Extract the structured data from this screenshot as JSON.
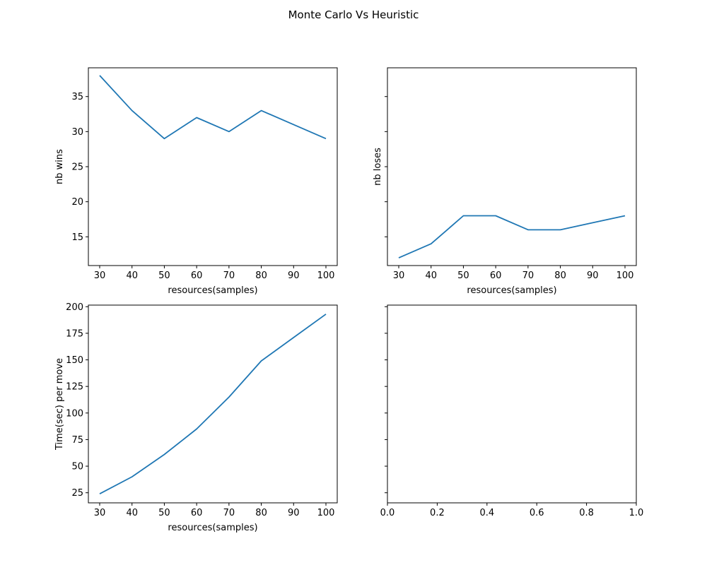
{
  "figure": {
    "title": "Monte Carlo Vs Heuristic",
    "line_color": "#1f77b4"
  },
  "chart_data": [
    {
      "type": "line",
      "position": "top-left",
      "xlabel": "resources(samples)",
      "ylabel": "nb wins",
      "xlim": [
        26.5,
        103.5
      ],
      "ylim": [
        10.9,
        39.1
      ],
      "xticks": [
        30,
        40,
        50,
        60,
        70,
        80,
        90,
        100
      ],
      "yticks": [
        15,
        20,
        25,
        30,
        35
      ],
      "x": [
        30,
        40,
        50,
        60,
        70,
        80,
        90,
        100
      ],
      "y": [
        38,
        33,
        29,
        32,
        30,
        33,
        31,
        29
      ]
    },
    {
      "type": "line",
      "position": "top-right",
      "xlabel": "resources(samples)",
      "ylabel": "nb loses",
      "xlim": [
        26.5,
        103.5
      ],
      "ylim": [
        10.9,
        39.1
      ],
      "xticks": [
        30,
        40,
        50,
        60,
        70,
        80,
        90,
        100
      ],
      "yticks": [
        15,
        20,
        25,
        30,
        35
      ],
      "ytick_labels_visible": false,
      "x": [
        30,
        40,
        50,
        60,
        70,
        80,
        90,
        100
      ],
      "y": [
        12,
        14,
        18,
        18,
        16,
        16,
        17,
        18
      ]
    },
    {
      "type": "line",
      "position": "bottom-left",
      "xlabel": "resources(samples)",
      "ylabel": "Time(sec) per move",
      "xlim": [
        26.5,
        103.5
      ],
      "ylim": [
        15.5,
        201.5
      ],
      "xticks": [
        30,
        40,
        50,
        60,
        70,
        80,
        90,
        100
      ],
      "yticks": [
        25,
        50,
        75,
        100,
        125,
        150,
        175,
        200
      ],
      "x": [
        30,
        40,
        50,
        60,
        70,
        80,
        90,
        100
      ],
      "y": [
        24,
        40,
        61,
        85,
        115,
        149,
        171,
        193
      ]
    },
    {
      "type": "line",
      "position": "bottom-right",
      "xlabel": "",
      "ylabel": "",
      "xlim": [
        0,
        1
      ],
      "ylim": [
        15.5,
        201.5
      ],
      "xticks": [
        0,
        0.2,
        0.4,
        0.6,
        0.8,
        1
      ],
      "xtick_labels": [
        "0.0",
        "0.2",
        "0.4",
        "0.6",
        "0.8",
        "1.0"
      ],
      "yticks": [
        25,
        50,
        75,
        100,
        125,
        150,
        175,
        200
      ],
      "ytick_labels_visible": false,
      "x": [],
      "y": []
    }
  ]
}
